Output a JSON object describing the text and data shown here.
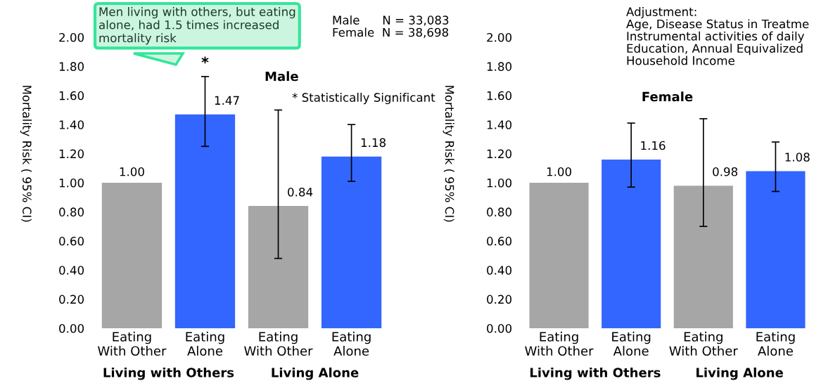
{
  "chart_data": [
    {
      "type": "bar",
      "title": "Male",
      "ylabel": "Mortality Risk ( 95% CI)",
      "categories": [
        "Eating\nWith Other",
        "Eating\nAlone",
        "Eating\nWith Other",
        "Eating\nAlone"
      ],
      "values": [
        1.0,
        1.47,
        0.84,
        1.18
      ],
      "colors": [
        "#a6a6a6",
        "#3366ff",
        "#a6a6a6",
        "#3366ff"
      ],
      "value_labels": [
        "1.00",
        "1.47",
        "0.84",
        "1.18"
      ],
      "errors": [
        null,
        [
          1.25,
          1.73
        ],
        [
          0.48,
          1.5
        ],
        [
          1.01,
          1.4
        ]
      ],
      "ylim": [
        0,
        2.0
      ],
      "yticks": [
        {
          "value": 0,
          "label": "0.00"
        },
        {
          "value": 0.2,
          "label": "0.20"
        },
        {
          "value": 0.4,
          "label": "0.40"
        },
        {
          "value": 0.6,
          "label": "0.60"
        },
        {
          "value": 0.8,
          "label": "0.80"
        },
        {
          "value": 1.0,
          "label": "1.00"
        },
        {
          "value": 1.2,
          "label": "1.20"
        },
        {
          "value": 1.4,
          "label": "1.40"
        },
        {
          "value": 1.6,
          "label": "1.60"
        },
        {
          "value": 1.8,
          "label": "1.80"
        },
        {
          "value": 2.0,
          "label": "2.00"
        }
      ],
      "grid": false,
      "legend": false,
      "annotations": [
        "Men living with others, but eating\nalone, had 1.5 times increased\nmortality risk",
        "*",
        "Male      N = 33,083\nFemale  N = 38,698",
        "* Statistically Significant",
        "Living with Others",
        "Living Alone"
      ]
    },
    {
      "type": "bar",
      "title": "Female",
      "ylabel": "Mortality Risk ( 95% CI)",
      "categories": [
        "Eating\nWith Other",
        "Eating\nAlone",
        "Eating\nWith Other",
        "Eating\nAlone"
      ],
      "values": [
        1.0,
        1.16,
        0.98,
        1.08
      ],
      "colors": [
        "#a6a6a6",
        "#3366ff",
        "#a6a6a6",
        "#3366ff"
      ],
      "value_labels": [
        "1.00",
        "1.16",
        "0.98",
        "1.08"
      ],
      "errors": [
        null,
        [
          0.97,
          1.41
        ],
        [
          0.7,
          1.44
        ],
        [
          0.94,
          1.28
        ]
      ],
      "ylim": [
        0,
        2.0
      ],
      "yticks": [
        {
          "value": 0,
          "label": "0.00"
        },
        {
          "value": 0.2,
          "label": "0.20"
        },
        {
          "value": 0.4,
          "label": "0.40"
        },
        {
          "value": 0.6,
          "label": "0.60"
        },
        {
          "value": 0.8,
          "label": "0.80"
        },
        {
          "value": 1.0,
          "label": "1.00"
        },
        {
          "value": 1.2,
          "label": "1.20"
        },
        {
          "value": 1.4,
          "label": "1.40"
        },
        {
          "value": 1.6,
          "label": "1.60"
        },
        {
          "value": 1.8,
          "label": "1.80"
        },
        {
          "value": 2.0,
          "label": "2.00"
        }
      ],
      "grid": false,
      "legend": false,
      "annotations": [
        "Adjustment:\nAge, Disease Status in Treatme\nInstrumental activities of daily\nEducation, Annual Equivalized\nHousehold Income",
        "Living with Others",
        "Living Alone"
      ]
    }
  ]
}
